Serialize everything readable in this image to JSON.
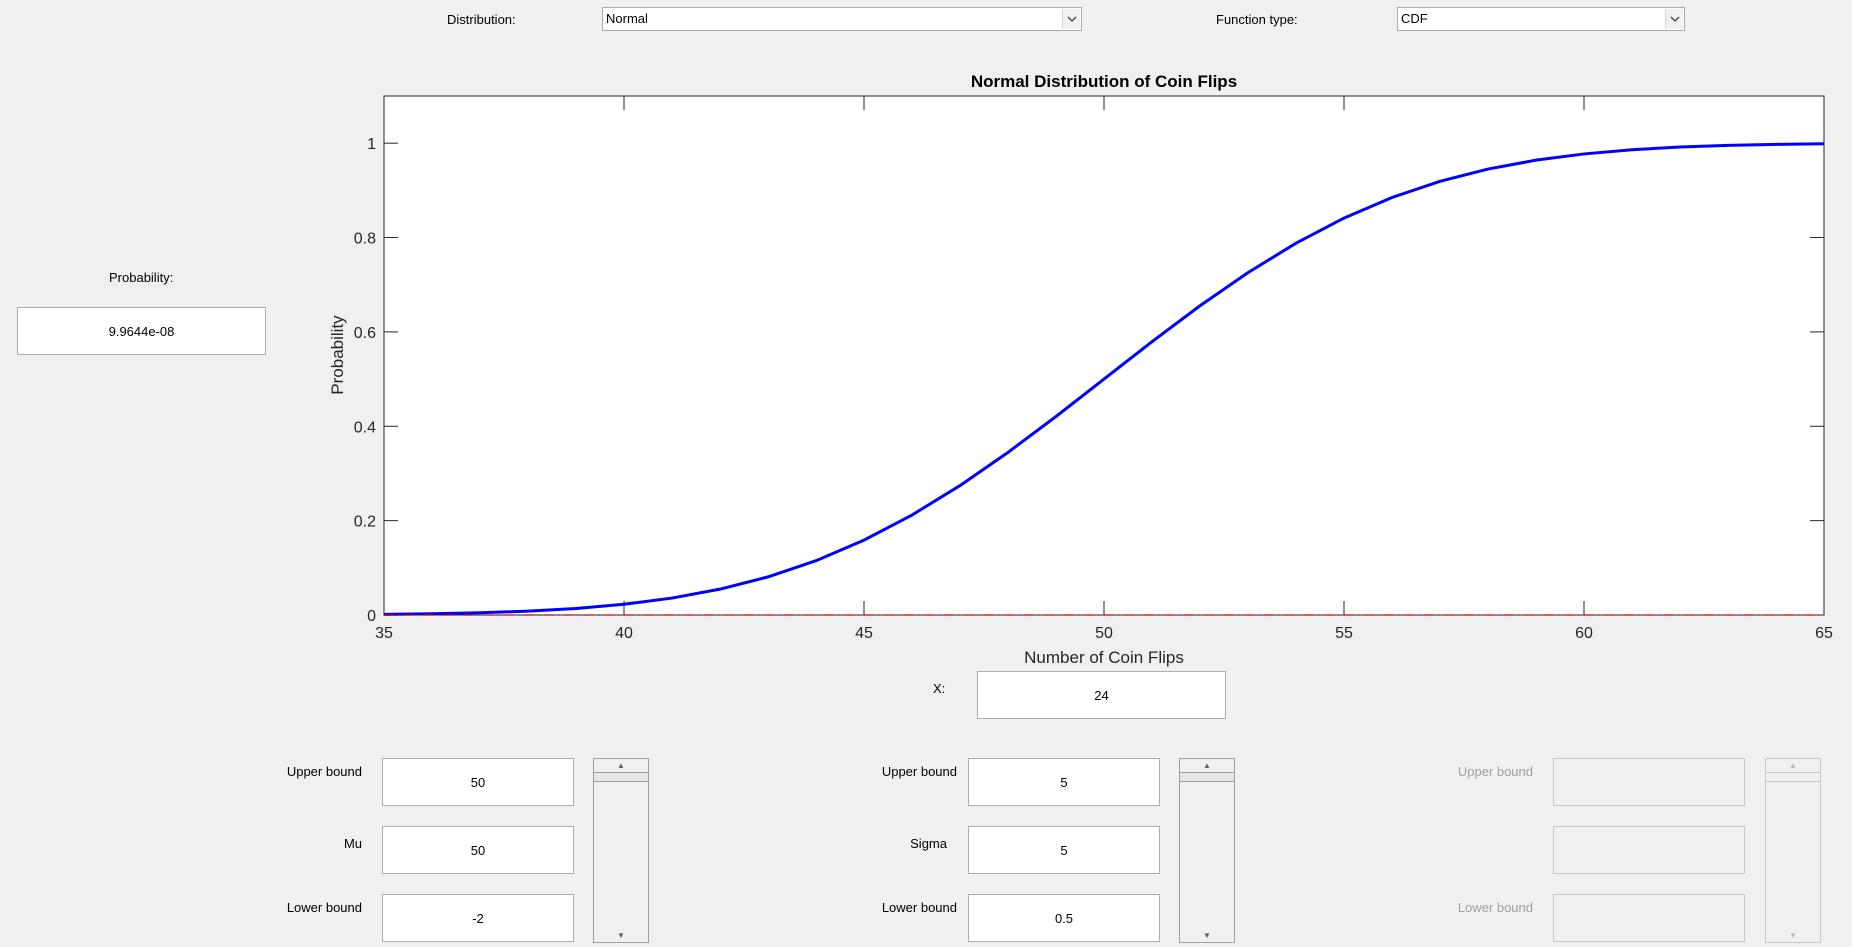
{
  "controls": {
    "distribution_label": "Distribution:",
    "distribution_value": "Normal",
    "function_type_label": "Function type:",
    "function_type_value": "CDF"
  },
  "probability": {
    "label": "Probability:",
    "value": "9.9644e-08"
  },
  "x_input": {
    "label": "X:",
    "value": "24"
  },
  "param1": {
    "upper_label": "Upper bound",
    "upper_value": "50",
    "name_label": "Mu",
    "value": "50",
    "lower_label": "Lower bound",
    "lower_value": "-2",
    "slider_level": 1.0
  },
  "param2": {
    "upper_label": "Upper bound",
    "upper_value": "5",
    "name_label": "Sigma",
    "value": "5",
    "lower_label": "Lower bound",
    "lower_value": "0.5",
    "slider_level": 1.0
  },
  "param3": {
    "upper_label": "Upper bound",
    "upper_value": "",
    "name_label": "",
    "value": "",
    "lower_label": "Lower bound",
    "lower_value": "",
    "enabled": false
  },
  "icons": {
    "dropdown": "chevron-down-icon",
    "slider_up": "triangle-up-icon",
    "slider_down": "triangle-down-icon"
  },
  "chart_data": {
    "type": "line",
    "title": "Normal Distribution of Coin Flips",
    "xlabel": "Number of Coin Flips",
    "ylabel": "Probability",
    "xlim": [
      35,
      65
    ],
    "ylim": [
      0,
      1.1
    ],
    "xticks": [
      "35",
      "40",
      "45",
      "50",
      "55",
      "60",
      "65"
    ],
    "yticks": [
      "0",
      "0.2",
      "0.4",
      "0.6",
      "0.8",
      "1"
    ],
    "grid": false,
    "series": [
      {
        "color": "#0000ff",
        "style": "solid",
        "x": [
          35,
          36,
          37,
          38,
          39,
          40,
          41,
          42,
          43,
          44,
          45,
          46,
          47,
          48,
          49,
          50,
          51,
          52,
          53,
          54,
          55,
          56,
          57,
          58,
          59,
          60,
          61,
          62,
          63,
          64,
          65
        ],
        "y": [
          0.0013,
          0.0026,
          0.0047,
          0.0082,
          0.0139,
          0.0228,
          0.0359,
          0.0548,
          0.0808,
          0.1151,
          0.1587,
          0.2119,
          0.2743,
          0.3446,
          0.4207,
          0.5,
          0.5793,
          0.6554,
          0.7257,
          0.7881,
          0.8413,
          0.8849,
          0.9192,
          0.9452,
          0.9641,
          0.9772,
          0.9861,
          0.9918,
          0.9953,
          0.9974,
          0.9987
        ]
      },
      {
        "color": "#d40000",
        "style": "dashdot",
        "x": [
          35,
          65
        ],
        "y": [
          0,
          0
        ]
      }
    ]
  }
}
